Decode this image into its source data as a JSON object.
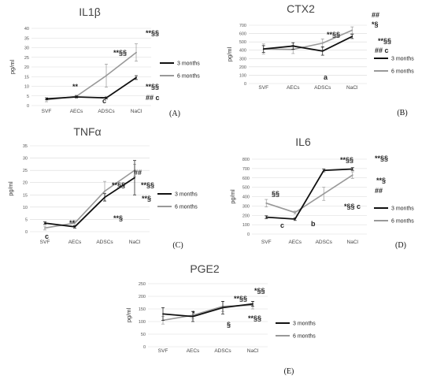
{
  "legend_labels": [
    "3 months",
    "6 months"
  ],
  "colors": {
    "m3": "#111111",
    "m6": "#999999",
    "grid": "#d9d9d9"
  },
  "chart_data": [
    {
      "type": "line",
      "title": "IL1β",
      "panel_label": "(A)",
      "ylabel": "pg/ml",
      "categories": [
        "SVF",
        "AECs",
        "ADSCs",
        "NaCl"
      ],
      "ylim": [
        0,
        40
      ],
      "yticks": [
        0,
        5,
        10,
        15,
        20,
        25,
        30,
        35,
        40
      ],
      "series": [
        {
          "name": "3 months",
          "values": [
            3.5,
            4.5,
            4,
            14.5
          ],
          "errors": [
            0.5,
            0.5,
            0.5,
            1
          ]
        },
        {
          "name": "6 months",
          "values": [
            3,
            4.8,
            15.5,
            27.5
          ],
          "errors": [
            1,
            0.6,
            6,
            4.5
          ]
        }
      ],
      "annotations": [
        "**",
        "**§§",
        "c",
        "**§§",
        "**§§",
        "## c"
      ]
    },
    {
      "type": "line",
      "title": "CTX2",
      "panel_label": "(B)",
      "ylabel": "pg/ml",
      "categories": [
        "SVF",
        "AECs",
        "ADSCs",
        "NaCl"
      ],
      "ylim": [
        0,
        700
      ],
      "yticks": [
        0,
        100,
        200,
        300,
        400,
        500,
        600,
        700
      ],
      "series": [
        {
          "name": "3 months",
          "values": [
            415,
            450,
            390,
            565
          ],
          "errors": [
            40,
            40,
            50,
            25
          ]
        },
        {
          "name": "6 months",
          "values": [
            415,
            410,
            485,
            640
          ],
          "errors": [
            60,
            50,
            50,
            40
          ]
        }
      ],
      "annotations": [
        "**§§",
        "##",
        "*§",
        "a",
        "**§§",
        "## c"
      ]
    },
    {
      "type": "line",
      "title": "TNFα",
      "panel_label": "(C)",
      "ylabel": "pg/ml",
      "categories": [
        "SVF",
        "AECs",
        "ADSCs",
        "NaCl"
      ],
      "ylim": [
        0,
        35
      ],
      "yticks": [
        0,
        5,
        10,
        15,
        20,
        25,
        30,
        35
      ],
      "series": [
        {
          "name": "3 months",
          "values": [
            3.5,
            2,
            14,
            22
          ],
          "errors": [
            0.5,
            0.5,
            1.5,
            7
          ]
        },
        {
          "name": "6 months",
          "values": [
            1.5,
            3.5,
            16.5,
            25
          ],
          "errors": [
            0.8,
            1,
            4,
            2.5
          ]
        }
      ],
      "annotations": [
        "**",
        "c",
        "**§§",
        "**§",
        "##",
        "**§§",
        "**§"
      ]
    },
    {
      "type": "line",
      "title": "IL6",
      "panel_label": "(D)",
      "ylabel": "pg/ml",
      "categories": [
        "SVF",
        "AECs",
        "ADSCs",
        "NaCl"
      ],
      "ylim": [
        0,
        800
      ],
      "yticks": [
        0,
        100,
        200,
        300,
        400,
        500,
        600,
        700,
        800
      ],
      "series": [
        {
          "name": "3 months",
          "values": [
            180,
            160,
            680,
            695
          ],
          "errors": [
            15,
            15,
            15,
            15
          ]
        },
        {
          "name": "6 months",
          "values": [
            330,
            230,
            430,
            630
          ],
          "errors": [
            40,
            15,
            70,
            35
          ]
        }
      ],
      "annotations": [
        "§§",
        "c",
        "b",
        "**§§",
        "*§§ c",
        "**§§",
        "**§",
        "##"
      ]
    },
    {
      "type": "line",
      "title": "PGE2",
      "panel_label": "(E)",
      "ylabel": "pg/ml",
      "categories": [
        "SVF",
        "AECs",
        "ADSCs",
        "NaCl"
      ],
      "ylim": [
        0,
        250
      ],
      "yticks": [
        0,
        50,
        100,
        150,
        200,
        250
      ],
      "series": [
        {
          "name": "3 months",
          "values": [
            130,
            120,
            155,
            170
          ],
          "errors": [
            25,
            20,
            25,
            10
          ]
        },
        {
          "name": "6 months",
          "values": [
            105,
            125,
            160,
            165
          ],
          "errors": [
            15,
            15,
            20,
            15
          ]
        }
      ],
      "annotations": [
        "*",
        "**§§",
        "§",
        "*§§",
        "**§§"
      ]
    }
  ]
}
